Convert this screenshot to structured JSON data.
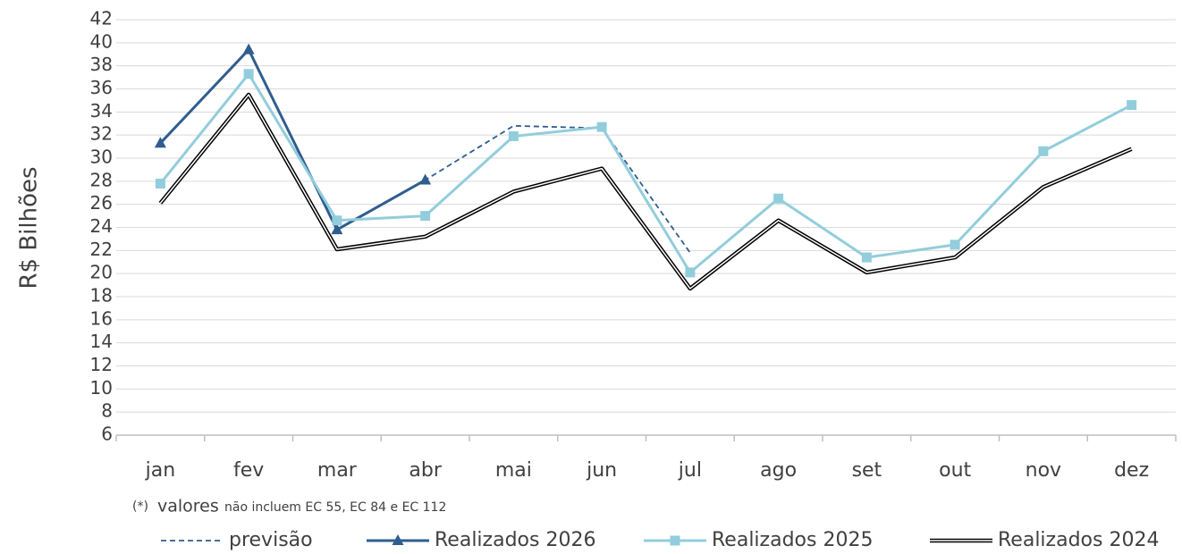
{
  "chart_data": {
    "type": "line",
    "y_label": "R$ Bilhões",
    "categories": [
      "jan",
      "fev",
      "mar",
      "abr",
      "mai",
      "jun",
      "jul",
      "ago",
      "set",
      "out",
      "nov",
      "dez"
    ],
    "series": [
      {
        "name": "previsão",
        "color": "#2f5d8f",
        "dash": true,
        "marker": null,
        "double": false,
        "values": [
          31.3,
          39.4,
          23.8,
          28.1,
          32.8,
          32.6,
          21.8,
          null,
          null,
          null,
          null,
          null
        ]
      },
      {
        "name": "Realizados 2026",
        "color": "#2f5d8f",
        "dash": false,
        "marker": "triangle",
        "double": false,
        "values": [
          31.3,
          39.4,
          23.8,
          28.1,
          null,
          null,
          null,
          null,
          null,
          null,
          null,
          null
        ]
      },
      {
        "name": "Realizados 2025",
        "color": "#92cddc",
        "dash": false,
        "marker": "square",
        "double": false,
        "values": [
          27.8,
          37.3,
          24.6,
          25.0,
          31.9,
          32.7,
          20.1,
          26.5,
          21.4,
          22.5,
          30.6,
          34.6
        ]
      },
      {
        "name": "Realizados 2024",
        "color": "#000000",
        "dash": false,
        "marker": null,
        "double": true,
        "values": [
          26.1,
          35.5,
          22.1,
          23.2,
          27.1,
          29.1,
          18.7,
          24.6,
          20.1,
          21.4,
          27.5,
          30.8
        ]
      }
    ],
    "ylim": [
      6,
      42
    ],
    "yticks": [
      6,
      8,
      10,
      12,
      14,
      16,
      18,
      20,
      22,
      24,
      26,
      28,
      30,
      32,
      34,
      36,
      38,
      40,
      42
    ],
    "grid": true,
    "legend": "bottom",
    "annotation": {
      "prefix": "(*)",
      "emphasis": "valores",
      "text": "não incluem EC 55, EC 84 e EC 112"
    }
  }
}
